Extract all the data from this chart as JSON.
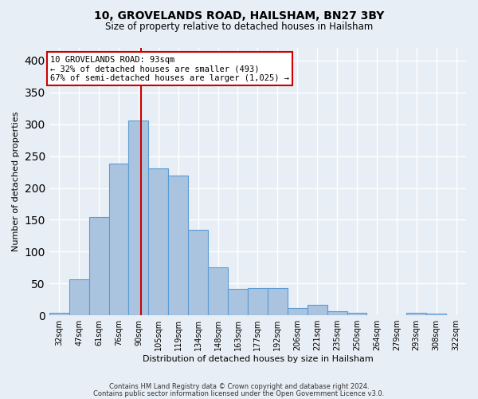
{
  "title1": "10, GROVELANDS ROAD, HAILSHAM, BN27 3BY",
  "title2": "Size of property relative to detached houses in Hailsham",
  "xlabel": "Distribution of detached houses by size in Hailsham",
  "ylabel": "Number of detached properties",
  "categories": [
    "32sqm",
    "47sqm",
    "61sqm",
    "76sqm",
    "90sqm",
    "105sqm",
    "119sqm",
    "134sqm",
    "148sqm",
    "163sqm",
    "177sqm",
    "192sqm",
    "206sqm",
    "221sqm",
    "235sqm",
    "250sqm",
    "264sqm",
    "279sqm",
    "293sqm",
    "308sqm",
    "322sqm"
  ],
  "values": [
    4,
    57,
    155,
    238,
    306,
    231,
    219,
    134,
    76,
    42,
    43,
    43,
    12,
    17,
    6,
    4,
    0,
    0,
    4,
    3,
    0
  ],
  "bar_color": "#aac4e0",
  "bar_edge_color": "#5b9bd5",
  "annotation_text_line1": "10 GROVELANDS ROAD: 93sqm",
  "annotation_text_line2": "← 32% of detached houses are smaller (493)",
  "annotation_text_line3": "67% of semi-detached houses are larger (1,025) →",
  "vline_color": "#cc0000",
  "vline_x_index": 4.13,
  "annotation_box_color": "#ffffff",
  "annotation_box_edge": "#cc0000",
  "bg_color": "#e8eef5",
  "grid_color": "#ffffff",
  "footer1": "Contains HM Land Registry data © Crown copyright and database right 2024.",
  "footer2": "Contains public sector information licensed under the Open Government Licence v3.0.",
  "ylim": [
    0,
    420
  ]
}
